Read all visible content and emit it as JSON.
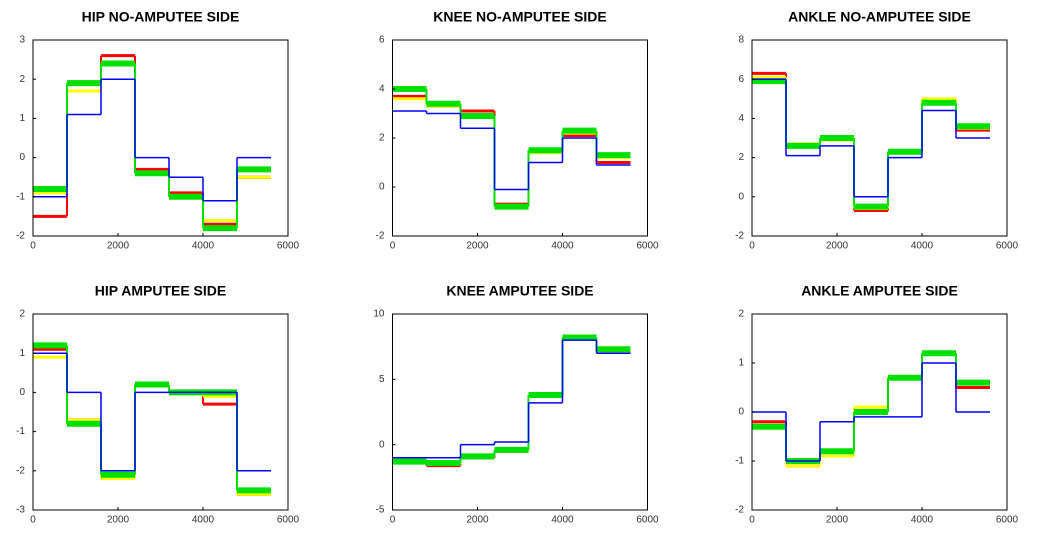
{
  "chart_data": [
    {
      "type": "step",
      "title": "HIP NO-AMPUTEE SIDE",
      "x": [
        0,
        800,
        1600,
        2400,
        3200,
        4000,
        4800,
        5600
      ],
      "xlim": [
        0,
        6000
      ],
      "xticks": [
        0,
        2000,
        4000,
        6000
      ],
      "ylim": [
        -2,
        3
      ],
      "yticks": [
        -2,
        -1,
        0,
        1,
        2,
        3
      ],
      "series": [
        {
          "color": "#ff0000",
          "values": [
            -1.5,
            1.7,
            2.6,
            -0.3,
            -0.9,
            -1.7,
            -0.5,
            -0.5
          ]
        },
        {
          "color": "#ffff00",
          "values": [
            -0.9,
            1.7,
            2.4,
            -0.4,
            -1,
            -1.6,
            -0.5,
            -0.5
          ]
        },
        {
          "color": "#00e000",
          "values": [
            -0.8,
            1.9,
            2.4,
            -0.4,
            -1,
            -1.8,
            -0.3,
            -0.3
          ]
        },
        {
          "color": "#0000ff",
          "values": [
            -1,
            1.1,
            2,
            0,
            -0.5,
            -1.1,
            0,
            0
          ]
        }
      ]
    },
    {
      "type": "step",
      "title": "KNEE NO-AMPUTEE SIDE",
      "x": [
        0,
        800,
        1600,
        2400,
        3200,
        4000,
        4800,
        5600
      ],
      "xlim": [
        0,
        6000
      ],
      "xticks": [
        0,
        2000,
        4000,
        6000
      ],
      "ylim": [
        -2,
        6
      ],
      "yticks": [
        -2,
        0,
        2,
        4,
        6
      ],
      "series": [
        {
          "color": "#ff0000",
          "values": [
            3.7,
            3.3,
            3.1,
            -0.7,
            1.5,
            2.1,
            1,
            1
          ]
        },
        {
          "color": "#ffff00",
          "values": [
            3.6,
            3.3,
            2.9,
            -0.8,
            1.4,
            2.2,
            1.2,
            1.2
          ]
        },
        {
          "color": "#00e000",
          "values": [
            4,
            3.4,
            2.9,
            -0.8,
            1.5,
            2.3,
            1.3,
            1.3
          ]
        },
        {
          "color": "#0000ff",
          "values": [
            3.1,
            3,
            2.4,
            -0.1,
            1,
            2,
            0.9,
            0.9
          ]
        }
      ]
    },
    {
      "type": "step",
      "title": "ANKLE NO-AMPUTEE SIDE",
      "x": [
        0,
        800,
        1600,
        2400,
        3200,
        4000,
        4800,
        5600
      ],
      "xlim": [
        0,
        6000
      ],
      "xticks": [
        0,
        2000,
        4000,
        6000
      ],
      "ylim": [
        -2,
        8
      ],
      "yticks": [
        -2,
        0,
        2,
        4,
        6,
        8
      ],
      "series": [
        {
          "color": "#ff0000",
          "values": [
            6.3,
            2.6,
            3,
            -0.7,
            2.3,
            4.9,
            3.4,
            3.4
          ]
        },
        {
          "color": "#ffff00",
          "values": [
            6.1,
            2.7,
            2.9,
            -0.6,
            2.3,
            5,
            3.5,
            3.5
          ]
        },
        {
          "color": "#00e000",
          "values": [
            5.9,
            2.6,
            3,
            -0.5,
            2.3,
            4.8,
            3.6,
            3.6
          ]
        },
        {
          "color": "#0000ff",
          "values": [
            6,
            2.1,
            2.6,
            0,
            2,
            4.4,
            3,
            3
          ]
        }
      ]
    },
    {
      "type": "step",
      "title": "HIP AMPUTEE SIDE",
      "x": [
        0,
        800,
        1600,
        2400,
        3200,
        4000,
        4800,
        5600
      ],
      "xlim": [
        0,
        6000
      ],
      "xticks": [
        0,
        2000,
        4000,
        6000
      ],
      "ylim": [
        -3,
        2
      ],
      "yticks": [
        -3,
        -2,
        -1,
        0,
        1,
        2
      ],
      "series": [
        {
          "color": "#ff0000",
          "values": [
            1.1,
            -0.7,
            -2.1,
            0.2,
            0,
            -0.3,
            -2.6,
            -2.6
          ]
        },
        {
          "color": "#ffff00",
          "values": [
            0.9,
            -0.7,
            -2.2,
            0.2,
            0,
            -0.1,
            -2.6,
            -2.6
          ]
        },
        {
          "color": "#00e000",
          "values": [
            1.2,
            -0.8,
            -2.1,
            0.2,
            0,
            0,
            -2.5,
            -2.5
          ]
        },
        {
          "color": "#0000ff",
          "values": [
            1,
            0,
            -2,
            0,
            0,
            0,
            -2,
            -2
          ]
        }
      ]
    },
    {
      "type": "step",
      "title": "KNEE AMPUTEE SIDE",
      "x": [
        0,
        800,
        1600,
        2400,
        3200,
        4000,
        4800,
        5600
      ],
      "xlim": [
        0,
        6000
      ],
      "xticks": [
        0,
        2000,
        4000,
        6000
      ],
      "ylim": [
        -5,
        10
      ],
      "yticks": [
        -5,
        0,
        5,
        10
      ],
      "series": [
        {
          "color": "#ff0000",
          "values": [
            -1.4,
            -1.6,
            -1,
            -0.5,
            3.7,
            8.1,
            7.2,
            7.2
          ]
        },
        {
          "color": "#ffff00",
          "values": [
            -1.3,
            -1.5,
            -0.9,
            -0.5,
            3.8,
            8.2,
            7.3,
            7.3
          ]
        },
        {
          "color": "#00e000",
          "values": [
            -1.3,
            -1.4,
            -0.9,
            -0.4,
            3.8,
            8.2,
            7.3,
            7.3
          ]
        },
        {
          "color": "#0000ff",
          "values": [
            -1,
            -1,
            0,
            0.2,
            3.2,
            8,
            7,
            7
          ]
        }
      ]
    },
    {
      "type": "step",
      "title": "ANKLE AMPUTEE SIDE",
      "x": [
        0,
        800,
        1600,
        2400,
        3200,
        4000,
        4800,
        5600
      ],
      "xlim": [
        0,
        6000
      ],
      "xticks": [
        0,
        2000,
        4000,
        6000
      ],
      "ylim": [
        -2,
        2
      ],
      "yticks": [
        -2,
        -1,
        0,
        1,
        2
      ],
      "series": [
        {
          "color": "#ff0000",
          "values": [
            -0.2,
            -1.1,
            -0.8,
            0,
            0.7,
            1.2,
            0.5,
            0.5
          ]
        },
        {
          "color": "#ffff00",
          "values": [
            -0.3,
            -1.1,
            -0.9,
            0.1,
            0.7,
            1.2,
            0.6,
            0.6
          ]
        },
        {
          "color": "#00e000",
          "values": [
            -0.3,
            -1,
            -0.8,
            0,
            0.7,
            1.2,
            0.6,
            0.6
          ]
        },
        {
          "color": "#0000ff",
          "values": [
            0,
            -1,
            -0.2,
            -0.1,
            -0.1,
            1,
            0,
            0
          ]
        }
      ]
    }
  ]
}
